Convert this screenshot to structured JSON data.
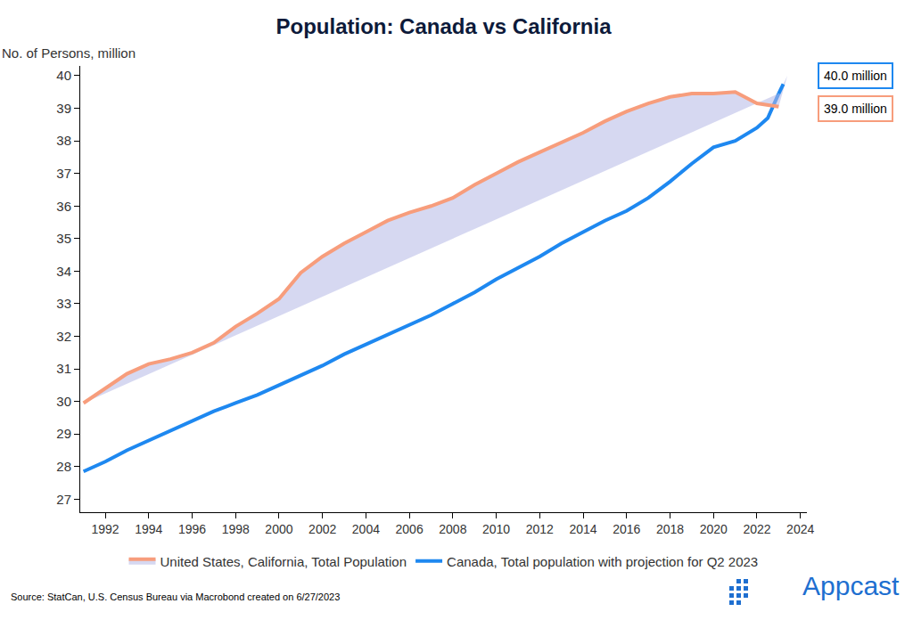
{
  "chart_data": {
    "type": "line",
    "title": "Population: Canada vs California",
    "y_label": "No. of Persons, million",
    "source": "Source: StatCan, U.S. Census Bureau via Macrobond created on 6/27/2023",
    "logo": "Appcast",
    "xlim": [
      1990.85,
      2024.3
    ],
    "xticks": [
      1992,
      1994,
      1996,
      1998,
      2000,
      2002,
      2004,
      2006,
      2008,
      2010,
      2012,
      2014,
      2016,
      2018,
      2020,
      2022,
      2024
    ],
    "ylim": [
      26.6,
      40.3
    ],
    "yticks": [
      27,
      28,
      29,
      30,
      31,
      32,
      33,
      34,
      35,
      36,
      37,
      38,
      39,
      40
    ],
    "grid": false,
    "legend": "bottom",
    "series": [
      {
        "name": "United States, California, Total Population",
        "color": "#f79d7c",
        "line_style": "solid",
        "x": [
          1991,
          1992,
          1993,
          1994,
          1995,
          1996,
          1997,
          1998,
          1999,
          2000,
          2001,
          2002,
          2003,
          2004,
          2005,
          2006,
          2007,
          2008,
          2009,
          2010,
          2011,
          2012,
          2013,
          2014,
          2015,
          2016,
          2017,
          2018,
          2019,
          2020,
          2021,
          2022,
          2023
        ],
        "values": [
          29.95,
          30.4,
          30.85,
          31.15,
          31.3,
          31.5,
          31.8,
          32.3,
          32.7,
          33.15,
          33.95,
          34.45,
          34.85,
          35.2,
          35.55,
          35.8,
          36.0,
          36.25,
          36.65,
          37.0,
          37.35,
          37.65,
          37.95,
          38.25,
          38.6,
          38.9,
          39.15,
          39.35,
          39.45,
          39.45,
          39.5,
          39.15,
          39.05
        ]
      },
      {
        "name": "Canada, Total population with projection for Q2 2023",
        "color": "#1e88f0",
        "line_style": "solid",
        "x": [
          1991,
          1992,
          1993,
          1994,
          1995,
          1996,
          1997,
          1998,
          1999,
          2000,
          2001,
          2002,
          2003,
          2004,
          2005,
          2006,
          2007,
          2008,
          2009,
          2010,
          2011,
          2012,
          2013,
          2014,
          2015,
          2016,
          2017,
          2018,
          2019,
          2020,
          2021,
          2022,
          2022.5,
          2023
        ],
        "values": [
          27.85,
          28.15,
          28.5,
          28.8,
          29.1,
          29.4,
          29.7,
          29.95,
          30.2,
          30.5,
          30.8,
          31.1,
          31.45,
          31.75,
          32.05,
          32.35,
          32.65,
          33.0,
          33.35,
          33.75,
          34.1,
          34.45,
          34.85,
          35.2,
          35.55,
          35.85,
          36.25,
          36.75,
          37.3,
          37.8,
          38.0,
          38.4,
          38.7,
          39.45
        ],
        "projection": {
          "x": [
            2023,
            2023.4
          ],
          "values": [
            39.45,
            40.0
          ],
          "line_style": "dashed"
        }
      }
    ],
    "annotations": [
      {
        "text": "40.0 million",
        "x": 2023.4,
        "y": 40.0,
        "series": "Canada, Total population with projection for Q2 2023"
      },
      {
        "text": "39.0 million",
        "x": 2023.0,
        "y": 39.0,
        "series": "United States, California, Total Population"
      }
    ]
  }
}
